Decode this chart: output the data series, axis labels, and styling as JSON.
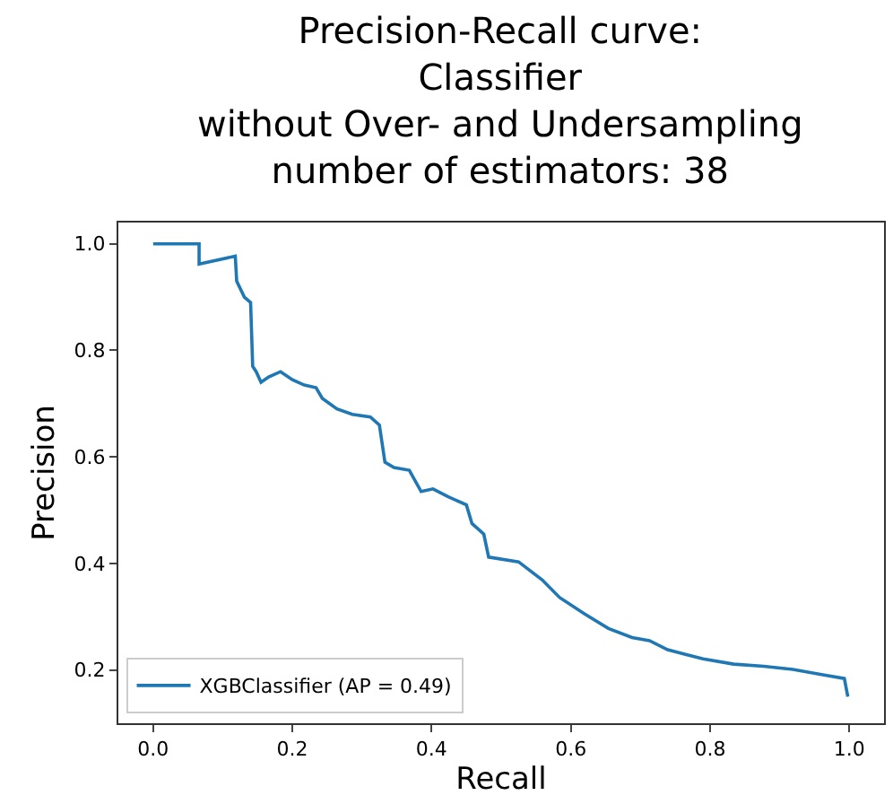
{
  "chart_data": {
    "type": "line",
    "title": "Precision-Recall curve:\nClassifier\nwithout Over- and Undersampling\nnumber of estimators: 38",
    "xlabel": "Recall",
    "ylabel": "Precision",
    "xlim": [
      -0.05,
      1.05
    ],
    "xticks": [
      {
        "value": 0,
        "label": "0.0"
      },
      0.2,
      0.4,
      0.6,
      0.8,
      {
        "value": 1,
        "label": "1.0"
      }
    ],
    "ylim": [
      0.1,
      1.04
    ],
    "yticks": [
      0.2,
      0.4,
      0.6,
      0.8,
      {
        "value": 1,
        "label": "1.0"
      }
    ],
    "grid": false,
    "legend": "bottom left",
    "marker": "none",
    "line_style": "solid",
    "series": [
      {
        "name": "XGBClassifier (AP = 0.49)",
        "color": "#1f77b4",
        "x": [
          0,
          0.066,
          0.066,
          0.118,
          0.12,
          0.131,
          0.14,
          0.143,
          0.148,
          0.155,
          0.166,
          0.183,
          0.2,
          0.217,
          0.234,
          0.243,
          0.264,
          0.286,
          0.312,
          0.325,
          0.333,
          0.346,
          0.368,
          0.385,
          0.402,
          0.424,
          0.45,
          0.458,
          0.475,
          0.482,
          0.525,
          0.559,
          0.584,
          0.62,
          0.654,
          0.688,
          0.713,
          0.739,
          0.79,
          0.834,
          0.877,
          0.919,
          0.962,
          0.993,
          0.998
        ],
        "values": [
          1.0,
          1.0,
          0.962,
          0.977,
          0.93,
          0.9,
          0.89,
          0.77,
          0.76,
          0.74,
          0.75,
          0.76,
          0.745,
          0.735,
          0.73,
          0.71,
          0.69,
          0.68,
          0.675,
          0.66,
          0.59,
          0.58,
          0.575,
          0.535,
          0.54,
          0.525,
          0.51,
          0.475,
          0.455,
          0.412,
          0.403,
          0.369,
          0.336,
          0.305,
          0.278,
          0.261,
          0.255,
          0.238,
          0.221,
          0.211,
          0.207,
          0.201,
          0.191,
          0.184,
          0.15
        ]
      }
    ]
  }
}
